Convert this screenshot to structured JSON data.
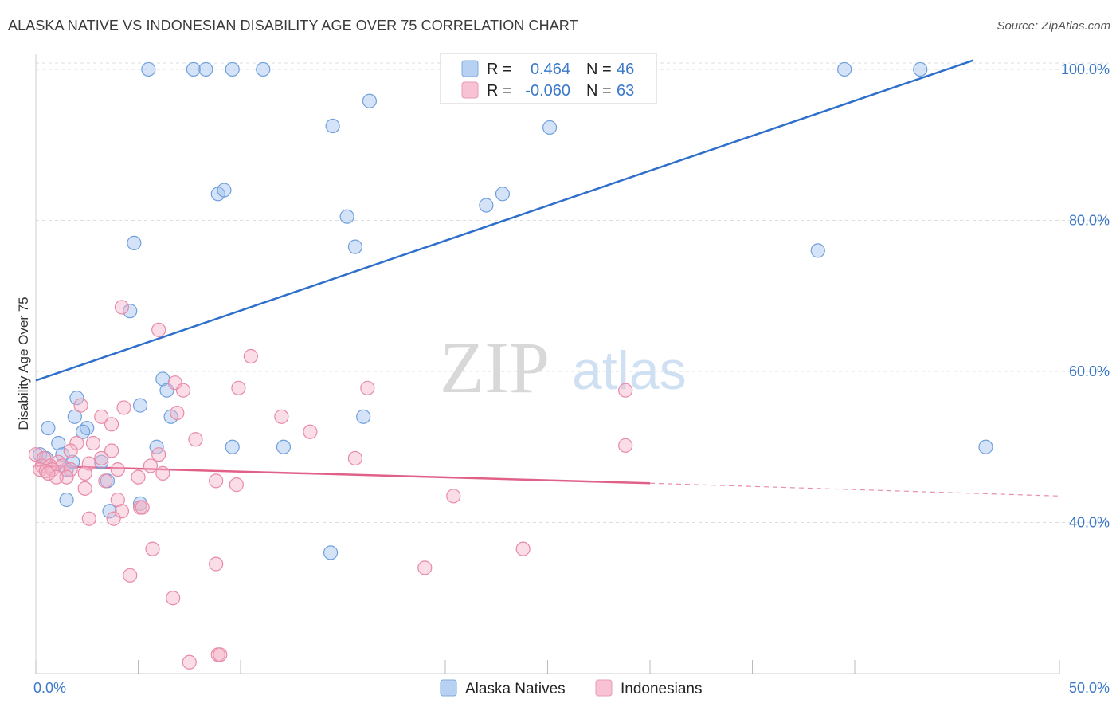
{
  "header": {
    "title": "ALASKA NATIVE VS INDONESIAN DISABILITY AGE OVER 75 CORRELATION CHART",
    "source": "Source: ZipAtlas.com"
  },
  "watermark": {
    "zip": "ZIP",
    "atlas": "atlas"
  },
  "legend": {
    "rows": [
      {
        "r_label": "R =",
        "r_value": "0.464",
        "n_label": "N =",
        "n_value": "46",
        "color": "#9fc2ee"
      },
      {
        "r_label": "R =",
        "r_value": "-0.060",
        "n_label": "N =",
        "n_value": "63",
        "color": "#f5b3c8"
      }
    ]
  },
  "bottom_legend": [
    "Alaska Natives",
    "Indonesians"
  ],
  "chart_data": {
    "type": "scatter",
    "title": "ALASKA NATIVE VS INDONESIAN DISABILITY AGE OVER 75 CORRELATION CHART",
    "xlabel": "",
    "ylabel": "Disability Age Over 75",
    "xlim": [
      0,
      50
    ],
    "ylim": [
      20,
      102
    ],
    "x_ticks": [
      "0.0%",
      "50.0%"
    ],
    "y_ticks": [
      {
        "value": 100,
        "label": "100.0%"
      },
      {
        "value": 80,
        "label": "80.0%"
      },
      {
        "value": 60,
        "label": "60.0%"
      },
      {
        "value": 40,
        "label": "40.0%"
      }
    ],
    "grid": true,
    "legend_position": "top-center",
    "series": [
      {
        "name": "Alaska Natives",
        "color": "#9fc2ee",
        "stroke": "#6fa0dc",
        "trend": {
          "x": [
            0,
            45.8
          ],
          "y": [
            58.8,
            101.2
          ],
          "color": "#2f6fcc"
        },
        "points": [
          [
            5.5,
            100
          ],
          [
            7.7,
            100
          ],
          [
            8.3,
            100
          ],
          [
            9.6,
            100
          ],
          [
            11.1,
            100
          ],
          [
            20.4,
            100
          ],
          [
            39.5,
            100
          ],
          [
            43.2,
            100
          ],
          [
            14.5,
            92.5
          ],
          [
            16.3,
            95.8
          ],
          [
            25.1,
            92.3
          ],
          [
            8.9,
            83.5
          ],
          [
            9.2,
            84
          ],
          [
            22.0,
            82
          ],
          [
            22.8,
            83.5
          ],
          [
            15.2,
            80.5
          ],
          [
            4.8,
            77
          ],
          [
            15.6,
            76.5
          ],
          [
            38.2,
            76
          ],
          [
            4.6,
            68
          ],
          [
            6.2,
            59
          ],
          [
            2.0,
            56.5
          ],
          [
            5.1,
            55.5
          ],
          [
            1.9,
            54
          ],
          [
            6.6,
            54
          ],
          [
            16.0,
            54
          ],
          [
            2.5,
            52.5
          ],
          [
            0.6,
            52.5
          ],
          [
            1.1,
            50.5
          ],
          [
            5.9,
            50
          ],
          [
            9.6,
            50
          ],
          [
            12.1,
            50
          ],
          [
            46.4,
            50
          ],
          [
            0.2,
            49
          ],
          [
            0.5,
            48.5
          ],
          [
            1.3,
            49
          ],
          [
            3.2,
            48
          ],
          [
            1.5,
            47
          ],
          [
            3.5,
            45.5
          ],
          [
            1.5,
            43
          ],
          [
            3.6,
            41.5
          ],
          [
            5.1,
            42.5
          ],
          [
            14.4,
            36
          ],
          [
            6.4,
            57.5
          ],
          [
            2.3,
            52
          ],
          [
            1.8,
            48
          ]
        ]
      },
      {
        "name": "Indonesians",
        "color": "#f5b3c8",
        "stroke": "#e88aa8",
        "trend": {
          "x": [
            0,
            30
          ],
          "y": [
            47.5,
            45.2
          ],
          "dash_to_x": 50,
          "dash_to_y": 43.5,
          "color": "#e06088"
        },
        "points": [
          [
            4.2,
            68.5
          ],
          [
            6.0,
            65.5
          ],
          [
            10.5,
            62
          ],
          [
            6.8,
            58.5
          ],
          [
            7.2,
            57.5
          ],
          [
            9.9,
            57.8
          ],
          [
            16.2,
            57.8
          ],
          [
            28.8,
            57.5
          ],
          [
            2.2,
            55.5
          ],
          [
            4.3,
            55.2
          ],
          [
            3.2,
            54
          ],
          [
            6.9,
            54.5
          ],
          [
            3.7,
            53
          ],
          [
            7.8,
            51
          ],
          [
            13.4,
            52
          ],
          [
            2.0,
            50.5
          ],
          [
            2.8,
            50.5
          ],
          [
            28.8,
            50.2
          ],
          [
            1.7,
            49.5
          ],
          [
            3.7,
            49.5
          ],
          [
            6.0,
            49
          ],
          [
            0.0,
            49
          ],
          [
            0.4,
            48.5
          ],
          [
            3.2,
            48.5
          ],
          [
            15.6,
            48.5
          ],
          [
            1.1,
            48
          ],
          [
            2.6,
            47.8
          ],
          [
            5.6,
            47.5
          ],
          [
            0.3,
            47.5
          ],
          [
            0.7,
            47.5
          ],
          [
            1.3,
            47.5
          ],
          [
            0.2,
            47
          ],
          [
            0.8,
            47
          ],
          [
            1.7,
            47
          ],
          [
            4.0,
            47
          ],
          [
            0.5,
            46.8
          ],
          [
            2.4,
            46.5
          ],
          [
            6.2,
            46.5
          ],
          [
            1.5,
            46
          ],
          [
            5.0,
            46
          ],
          [
            3.4,
            45.5
          ],
          [
            8.8,
            45.5
          ],
          [
            9.8,
            45
          ],
          [
            2.4,
            44.5
          ],
          [
            20.4,
            43.5
          ],
          [
            4.0,
            43
          ],
          [
            5.1,
            42
          ],
          [
            5.2,
            42
          ],
          [
            4.2,
            41.5
          ],
          [
            2.6,
            40.5
          ],
          [
            3.8,
            40.5
          ],
          [
            5.7,
            36.5
          ],
          [
            23.8,
            36.5
          ],
          [
            8.8,
            34.5
          ],
          [
            19.0,
            34
          ],
          [
            4.6,
            33
          ],
          [
            6.7,
            30
          ],
          [
            7.5,
            21.5
          ],
          [
            8.9,
            22.5
          ],
          [
            9.0,
            22.5
          ],
          [
            12.0,
            54
          ],
          [
            1.0,
            46
          ],
          [
            0.6,
            46.5
          ]
        ]
      }
    ]
  }
}
